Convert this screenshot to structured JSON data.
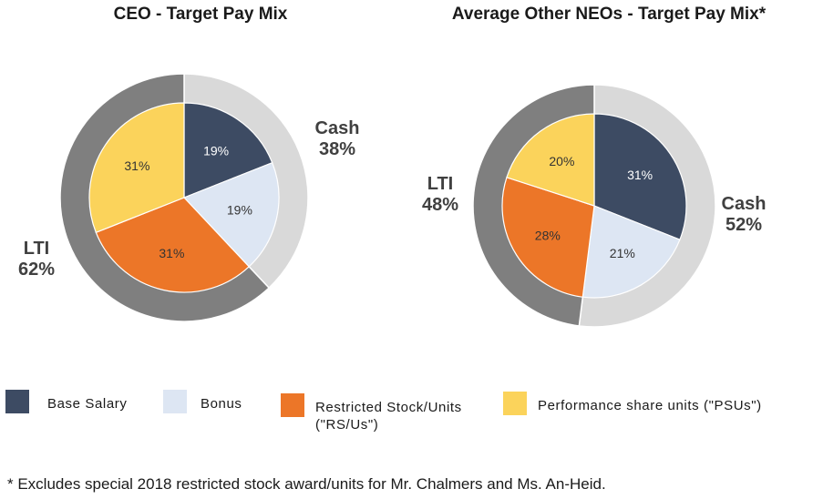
{
  "colors": {
    "base_salary": "#3d4b63",
    "bonus": "#dde6f3",
    "rsus": "#ec7628",
    "psus": "#fbd35b",
    "cash_ring": "#d9d9d9",
    "lti_ring": "#7f7f7f"
  },
  "chart_data": [
    {
      "type": "pie",
      "title": "CEO - Target Pay Mix",
      "slices": [
        {
          "label": "Base Salary",
          "value": 19,
          "text": "19%",
          "color_key": "base_salary"
        },
        {
          "label": "Bonus",
          "value": 19,
          "text": "19%",
          "color_key": "bonus"
        },
        {
          "label": "Restricted Stock/Units (\"RS/Us\")",
          "value": 31,
          "text": "31%",
          "color_key": "rsus"
        },
        {
          "label": "Performance share units (\"PSUs\")",
          "value": 31,
          "text": "31%",
          "color_key": "psus"
        }
      ],
      "outer_ring": [
        {
          "label": "Cash",
          "value": 38,
          "text": "38%",
          "color_key": "cash_ring"
        },
        {
          "label": "LTI",
          "value": 62,
          "text": "62%",
          "color_key": "lti_ring"
        }
      ]
    },
    {
      "type": "pie",
      "title": "Average Other NEOs - Target Pay Mix*",
      "slices": [
        {
          "label": "Base Salary",
          "value": 31,
          "text": "31%",
          "color_key": "base_salary"
        },
        {
          "label": "Bonus",
          "value": 21,
          "text": "21%",
          "color_key": "bonus"
        },
        {
          "label": "Restricted Stock/Units (\"RS/Us\")",
          "value": 28,
          "text": "28%",
          "color_key": "rsus"
        },
        {
          "label": "Performance share units (\"PSUs\")",
          "value": 20,
          "text": "20%",
          "color_key": "psus"
        }
      ],
      "outer_ring": [
        {
          "label": "Cash",
          "value": 52,
          "text": "52%",
          "color_key": "cash_ring"
        },
        {
          "label": "LTI",
          "value": 48,
          "text": "48%",
          "color_key": "lti_ring"
        }
      ]
    }
  ],
  "legend": {
    "base_salary": "Base Salary",
    "bonus": "Bonus",
    "rsus_line1": "Restricted Stock/Units",
    "rsus_line2": "(\"RS/Us\")",
    "psus": "Performance share units (\"PSUs\")"
  },
  "footnote": "* Excludes special 2018 restricted stock award/units for Mr. Chalmers and Ms. An-Heid."
}
